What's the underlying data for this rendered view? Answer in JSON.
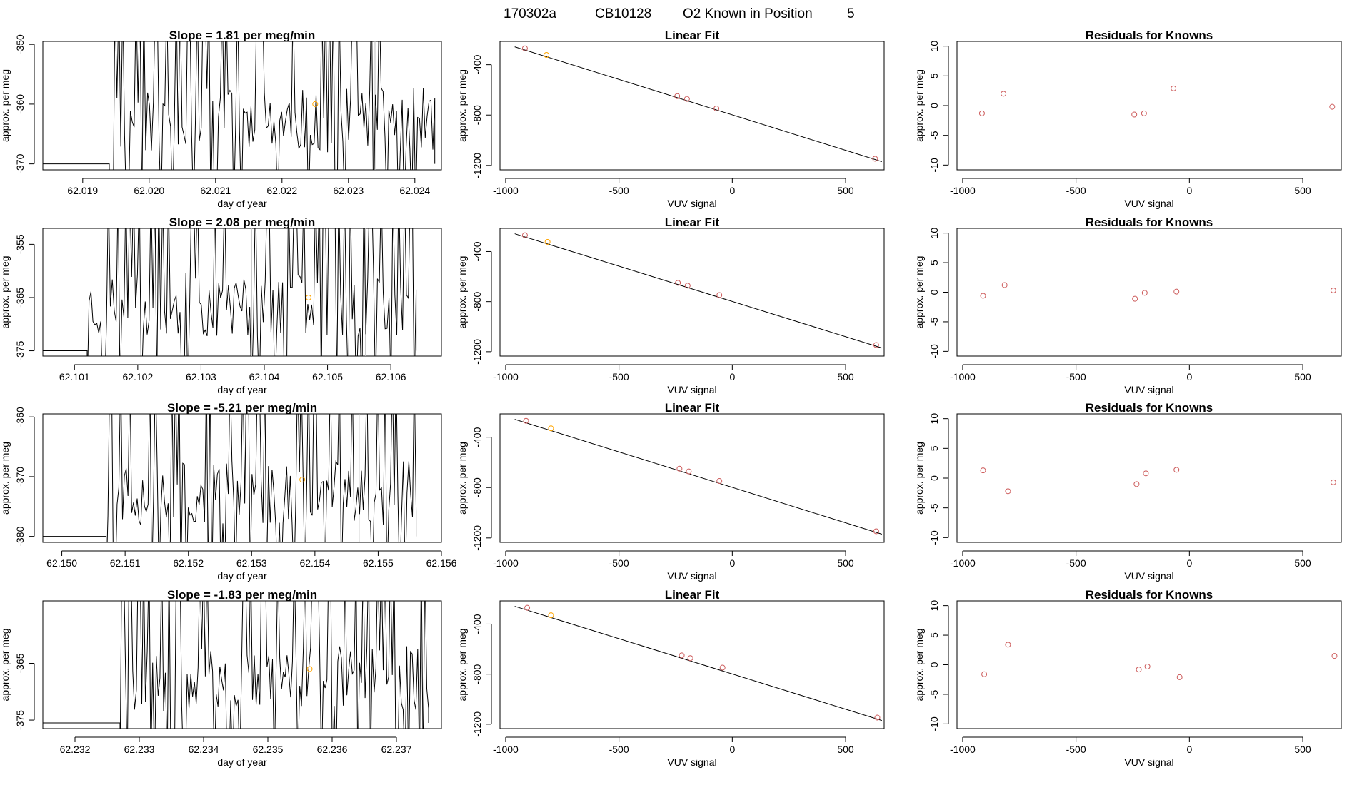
{
  "figure_title": {
    "run": "170302a",
    "tank": "CB10128",
    "description": "O2 Known in Position",
    "position": "5"
  },
  "colors": {
    "line": "#000000",
    "vline": "#bebebe",
    "point_orange": "#ffa500",
    "point_red": "#cd5c5c"
  },
  "chart_data": [
    {
      "type": "line",
      "panel": "drift",
      "title": "Slope =  1.81  per meg/min",
      "xlabel": "day of year",
      "ylabel": "approx. per meg",
      "xlim": [
        62.0184,
        62.0244
      ],
      "xticks": [
        62.019,
        62.02,
        62.021,
        62.022,
        62.023,
        62.024
      ],
      "xtick_labels": [
        "62.019",
        "62.020",
        "62.021",
        "62.022",
        "62.023",
        "62.024"
      ],
      "ylim": [
        -371,
        -349.5
      ],
      "yticks": [
        -350,
        -360,
        -370
      ],
      "ytick_labels": [
        "-350",
        "-360",
        "-370"
      ],
      "start": 62.0194,
      "end": 62.0243,
      "seed": 11,
      "vlines": [
        62.0234
      ],
      "highlight": {
        "x": 62.0225,
        "y": -360
      }
    },
    {
      "type": "scatter",
      "panel": "fit",
      "title": "Linear Fit",
      "xlabel": "VUV signal",
      "ylabel": "approx. per meg",
      "xlim": [
        -1025,
        670
      ],
      "xticks": [
        -1000,
        -500,
        0,
        500
      ],
      "xtick_labels": [
        "-1000",
        "-500",
        "0",
        "500"
      ],
      "ylim": [
        -1235,
        -215
      ],
      "yticks": [
        -400,
        -800,
        -1200
      ],
      "ytick_labels": [
        "-400",
        "-800",
        "-1200"
      ],
      "fit_line": {
        "x": [
          -960,
          660
        ],
        "y": [
          -258,
          -1170
        ]
      },
      "points": [
        {
          "x": -915,
          "y": -270,
          "c": "red"
        },
        {
          "x": -820,
          "y": -323,
          "c": "orange"
        },
        {
          "x": -243,
          "y": -650,
          "c": "red"
        },
        {
          "x": -200,
          "y": -672,
          "c": "red"
        },
        {
          "x": -70,
          "y": -748,
          "c": "red"
        },
        {
          "x": 630,
          "y": -1147,
          "c": "red"
        }
      ]
    },
    {
      "type": "scatter",
      "panel": "resid",
      "title": "Residuals for Knowns",
      "xlabel": "VUV signal",
      "ylabel": "approx. per meg",
      "xlim": [
        -1025,
        670
      ],
      "xticks": [
        -1000,
        -500,
        0,
        500
      ],
      "xtick_labels": [
        "-1000",
        "-500",
        "0",
        "500"
      ],
      "ylim": [
        -10.8,
        10.8
      ],
      "yticks": [
        10,
        5,
        0,
        -5,
        -10
      ],
      "ytick_labels": [
        "10",
        "5",
        "0",
        "-5",
        "-10"
      ],
      "points": [
        {
          "x": -915,
          "y": -1.3
        },
        {
          "x": -820,
          "y": 2.0
        },
        {
          "x": -243,
          "y": -1.5
        },
        {
          "x": -200,
          "y": -1.3
        },
        {
          "x": -70,
          "y": 2.9
        },
        {
          "x": 630,
          "y": -0.2
        }
      ]
    },
    {
      "type": "line",
      "panel": "drift",
      "title": "Slope =  2.08  per meg/min",
      "xlabel": "day of year",
      "ylabel": "approx. per meg",
      "xlim": [
        62.1005,
        62.1068
      ],
      "xticks": [
        62.101,
        62.102,
        62.103,
        62.104,
        62.105,
        62.106
      ],
      "xtick_labels": [
        "62.101",
        "62.102",
        "62.103",
        "62.104",
        "62.105",
        "62.106"
      ],
      "ylim": [
        -376,
        -352
      ],
      "yticks": [
        -355,
        -365,
        -375
      ],
      "ytick_labels": [
        "-355",
        "-365",
        "-375"
      ],
      "start": 62.1012,
      "end": 62.1064,
      "seed": 23,
      "vlines": [
        62.1038,
        62.1056
      ],
      "highlight": {
        "x": 62.1047,
        "y": -365
      }
    },
    {
      "type": "scatter",
      "panel": "fit",
      "title": "Linear Fit",
      "xlabel": "VUV signal",
      "ylabel": "approx. per meg",
      "xlim": [
        -1025,
        670
      ],
      "xticks": [
        -1000,
        -500,
        0,
        500
      ],
      "xtick_labels": [
        "-1000",
        "-500",
        "0",
        "500"
      ],
      "ylim": [
        -1235,
        -215
      ],
      "yticks": [
        -400,
        -800,
        -1200
      ],
      "ytick_labels": [
        "-400",
        "-800",
        "-1200"
      ],
      "fit_line": {
        "x": [
          -960,
          660
        ],
        "y": [
          -258,
          -1170
        ]
      },
      "points": [
        {
          "x": -915,
          "y": -270,
          "c": "red"
        },
        {
          "x": -815,
          "y": -323,
          "c": "orange"
        },
        {
          "x": -240,
          "y": -650,
          "c": "red"
        },
        {
          "x": -197,
          "y": -672,
          "c": "red"
        },
        {
          "x": -57,
          "y": -748,
          "c": "red"
        },
        {
          "x": 635,
          "y": -1147,
          "c": "red"
        }
      ]
    },
    {
      "type": "scatter",
      "panel": "resid",
      "title": "Residuals for Knowns",
      "xlabel": "VUV signal",
      "ylabel": "approx. per meg",
      "xlim": [
        -1025,
        670
      ],
      "xticks": [
        -1000,
        -500,
        0,
        500
      ],
      "xtick_labels": [
        "-1000",
        "-500",
        "0",
        "500"
      ],
      "ylim": [
        -10.8,
        10.8
      ],
      "yticks": [
        10,
        5,
        0,
        -5,
        -10
      ],
      "ytick_labels": [
        "10",
        "5",
        "0",
        "-5",
        "-10"
      ],
      "points": [
        {
          "x": -910,
          "y": -0.6
        },
        {
          "x": -815,
          "y": 1.2
        },
        {
          "x": -240,
          "y": -1.1
        },
        {
          "x": -197,
          "y": -0.1
        },
        {
          "x": -57,
          "y": 0.1
        },
        {
          "x": 635,
          "y": 0.3
        }
      ]
    },
    {
      "type": "line",
      "panel": "drift",
      "title": "Slope =  -5.21  per meg/min",
      "xlabel": "day of year",
      "ylabel": "approx. per meg",
      "xlim": [
        62.1497,
        62.156
      ],
      "xticks": [
        62.15,
        62.151,
        62.152,
        62.153,
        62.154,
        62.155,
        62.156
      ],
      "xtick_labels": [
        "62.150",
        "62.151",
        "62.152",
        "62.153",
        "62.154",
        "62.155",
        "62.156"
      ],
      "ylim": [
        -381,
        -359.5
      ],
      "yticks": [
        -360,
        -370,
        -380
      ],
      "ytick_labels": [
        "-360",
        "-370",
        "-380"
      ],
      "start": 62.1507,
      "end": 62.1556,
      "seed": 37,
      "vlines": [
        62.1547
      ],
      "highlight": {
        "x": 62.1538,
        "y": -370.5
      }
    },
    {
      "type": "scatter",
      "panel": "fit",
      "title": "Linear Fit",
      "xlabel": "VUV signal",
      "ylabel": "approx. per meg",
      "xlim": [
        -1025,
        670
      ],
      "xticks": [
        -1000,
        -500,
        0,
        500
      ],
      "xtick_labels": [
        "-1000",
        "-500",
        "0",
        "500"
      ],
      "ylim": [
        -1235,
        -215
      ],
      "yticks": [
        -400,
        -800,
        -1200
      ],
      "ytick_labels": [
        "-400",
        "-800",
        "-1200"
      ],
      "fit_line": {
        "x": [
          -960,
          660
        ],
        "y": [
          -258,
          -1170
        ]
      },
      "points": [
        {
          "x": -910,
          "y": -270,
          "c": "red"
        },
        {
          "x": -800,
          "y": -330,
          "c": "orange"
        },
        {
          "x": -233,
          "y": -650,
          "c": "red"
        },
        {
          "x": -192,
          "y": -672,
          "c": "red"
        },
        {
          "x": -57,
          "y": -748,
          "c": "red"
        },
        {
          "x": 635,
          "y": -1147,
          "c": "red"
        }
      ]
    },
    {
      "type": "scatter",
      "panel": "resid",
      "title": "Residuals for Knowns",
      "xlabel": "VUV signal",
      "ylabel": "approx. per meg",
      "xlim": [
        -1025,
        670
      ],
      "xticks": [
        -1000,
        -500,
        0,
        500
      ],
      "xtick_labels": [
        "-1000",
        "-500",
        "0",
        "500"
      ],
      "ylim": [
        -10.8,
        10.8
      ],
      "yticks": [
        10,
        5,
        0,
        -5,
        -10
      ],
      "ytick_labels": [
        "10",
        "5",
        "0",
        "-5",
        "-10"
      ],
      "points": [
        {
          "x": -910,
          "y": 1.3
        },
        {
          "x": -800,
          "y": -2.2
        },
        {
          "x": -233,
          "y": -1.0
        },
        {
          "x": -192,
          "y": 0.8
        },
        {
          "x": -57,
          "y": 1.4
        },
        {
          "x": 635,
          "y": -0.7
        }
      ]
    },
    {
      "type": "line",
      "panel": "drift",
      "title": "Slope =  -1.83  per meg/min",
      "xlabel": "day of year",
      "ylabel": "approx. per meg",
      "xlim": [
        62.2315,
        62.2377
      ],
      "xticks": [
        62.232,
        62.233,
        62.234,
        62.235,
        62.236,
        62.237
      ],
      "xtick_labels": [
        "62.232",
        "62.233",
        "62.234",
        "62.235",
        "62.236",
        "62.237"
      ],
      "ylim": [
        -376.5,
        -354
      ],
      "yticks": [
        -365,
        -375
      ],
      "ytick_labels": [
        "-365",
        "-375"
      ],
      "start": 62.2327,
      "end": 62.2375,
      "seed": 53,
      "vlines": [],
      "highlight": {
        "x": 62.23565,
        "y": -366
      }
    },
    {
      "type": "scatter",
      "panel": "fit",
      "title": "Linear Fit",
      "xlabel": "VUV signal",
      "ylabel": "approx. per meg",
      "xlim": [
        -1025,
        670
      ],
      "xticks": [
        -1000,
        -500,
        0,
        500
      ],
      "xtick_labels": [
        "-1000",
        "-500",
        "0",
        "500"
      ],
      "ylim": [
        -1235,
        -215
      ],
      "yticks": [
        -400,
        -800,
        -1200
      ],
      "ytick_labels": [
        "-400",
        "-800",
        "-1200"
      ],
      "fit_line": {
        "x": [
          -960,
          660
        ],
        "y": [
          -258,
          -1170
        ]
      },
      "points": [
        {
          "x": -905,
          "y": -270,
          "c": "red"
        },
        {
          "x": -800,
          "y": -330,
          "c": "orange"
        },
        {
          "x": -223,
          "y": -650,
          "c": "red"
        },
        {
          "x": -185,
          "y": -672,
          "c": "red"
        },
        {
          "x": -43,
          "y": -748,
          "c": "red"
        },
        {
          "x": 640,
          "y": -1147,
          "c": "red"
        }
      ]
    },
    {
      "type": "scatter",
      "panel": "resid",
      "title": "Residuals for Knowns",
      "xlabel": "VUV signal",
      "ylabel": "approx. per meg",
      "xlim": [
        -1025,
        670
      ],
      "xticks": [
        -1000,
        -500,
        0,
        500
      ],
      "xtick_labels": [
        "-1000",
        "-500",
        "0",
        "500"
      ],
      "ylim": [
        -10.8,
        10.8
      ],
      "yticks": [
        10,
        5,
        0,
        -5,
        -10
      ],
      "ytick_labels": [
        "10",
        "5",
        "0",
        "-5",
        "-10"
      ],
      "points": [
        {
          "x": -905,
          "y": -1.6
        },
        {
          "x": -800,
          "y": 3.4
        },
        {
          "x": -223,
          "y": -0.8
        },
        {
          "x": -185,
          "y": -0.3
        },
        {
          "x": -43,
          "y": -2.1
        },
        {
          "x": 640,
          "y": 1.5
        }
      ]
    }
  ]
}
